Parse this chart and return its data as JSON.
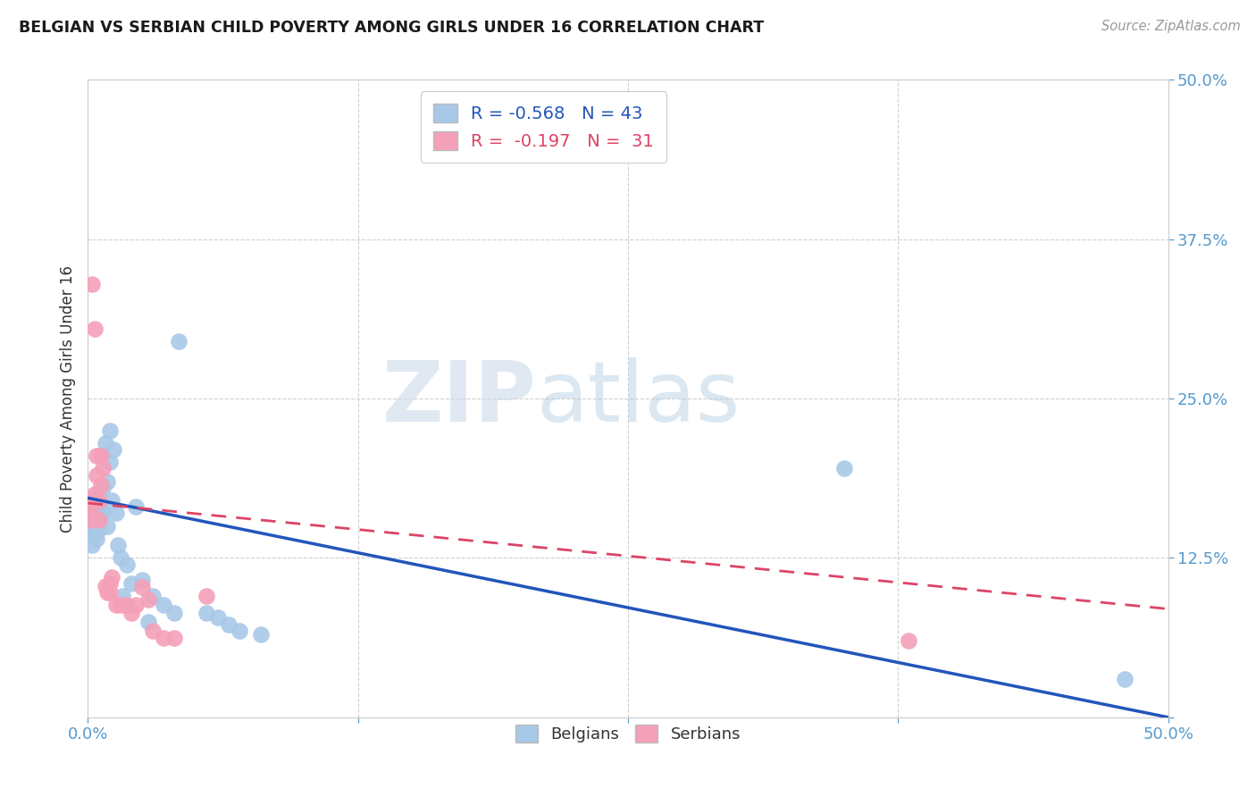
{
  "title": "BELGIAN VS SERBIAN CHILD POVERTY AMONG GIRLS UNDER 16 CORRELATION CHART",
  "source": "Source: ZipAtlas.com",
  "ylabel": "Child Poverty Among Girls Under 16",
  "xlim": [
    0.0,
    0.5
  ],
  "ylim": [
    0.0,
    0.5
  ],
  "xticks": [
    0.0,
    0.125,
    0.25,
    0.375,
    0.5
  ],
  "yticks": [
    0.0,
    0.125,
    0.25,
    0.375,
    0.5
  ],
  "xtick_labels": [
    "0.0%",
    "",
    "",
    "",
    "50.0%"
  ],
  "ytick_labels": [
    "",
    "12.5%",
    "25.0%",
    "37.5%",
    "50.0%"
  ],
  "belgian_color": "#a8c8e8",
  "serbian_color": "#f4a0b8",
  "trend_belgian_color": "#2255bb",
  "trend_serbian_color": "#dd4466",
  "belgian_R": -0.568,
  "belgian_N": 43,
  "serbian_R": -0.197,
  "serbian_N": 31,
  "watermark_zip": "ZIP",
  "watermark_atlas": "atlas",
  "belgians_x": [
    0.001,
    0.001,
    0.002,
    0.002,
    0.003,
    0.003,
    0.003,
    0.004,
    0.004,
    0.005,
    0.005,
    0.005,
    0.006,
    0.006,
    0.007,
    0.007,
    0.008,
    0.009,
    0.009,
    0.01,
    0.01,
    0.011,
    0.012,
    0.013,
    0.014,
    0.015,
    0.016,
    0.018,
    0.02,
    0.022,
    0.025,
    0.028,
    0.03,
    0.035,
    0.04,
    0.042,
    0.055,
    0.06,
    0.065,
    0.07,
    0.08,
    0.35,
    0.48
  ],
  "belgians_y": [
    0.155,
    0.148,
    0.135,
    0.15,
    0.145,
    0.155,
    0.165,
    0.14,
    0.145,
    0.148,
    0.155,
    0.175,
    0.16,
    0.205,
    0.18,
    0.16,
    0.215,
    0.15,
    0.185,
    0.225,
    0.2,
    0.17,
    0.21,
    0.16,
    0.135,
    0.125,
    0.095,
    0.12,
    0.105,
    0.165,
    0.108,
    0.075,
    0.095,
    0.088,
    0.082,
    0.295,
    0.082,
    0.078,
    0.073,
    0.068,
    0.065,
    0.195,
    0.03
  ],
  "serbians_x": [
    0.001,
    0.001,
    0.001,
    0.002,
    0.002,
    0.003,
    0.003,
    0.004,
    0.004,
    0.005,
    0.005,
    0.006,
    0.006,
    0.007,
    0.008,
    0.009,
    0.01,
    0.01,
    0.011,
    0.013,
    0.015,
    0.018,
    0.02,
    0.022,
    0.025,
    0.028,
    0.03,
    0.035,
    0.04,
    0.055,
    0.38
  ],
  "serbians_y": [
    0.17,
    0.162,
    0.155,
    0.34,
    0.168,
    0.175,
    0.305,
    0.19,
    0.205,
    0.155,
    0.17,
    0.182,
    0.205,
    0.195,
    0.103,
    0.098,
    0.098,
    0.105,
    0.11,
    0.088,
    0.088,
    0.088,
    0.082,
    0.088,
    0.102,
    0.092,
    0.068,
    0.062,
    0.062,
    0.095,
    0.06
  ],
  "background_color": "#ffffff",
  "grid_color": "#d0d0d0",
  "trend_b_x0": 0.0,
  "trend_b_y0": 0.172,
  "trend_b_x1": 0.5,
  "trend_b_y1": 0.0,
  "trend_s_x0": 0.0,
  "trend_s_y0": 0.168,
  "trend_s_x1": 0.5,
  "trend_s_y1": 0.085
}
